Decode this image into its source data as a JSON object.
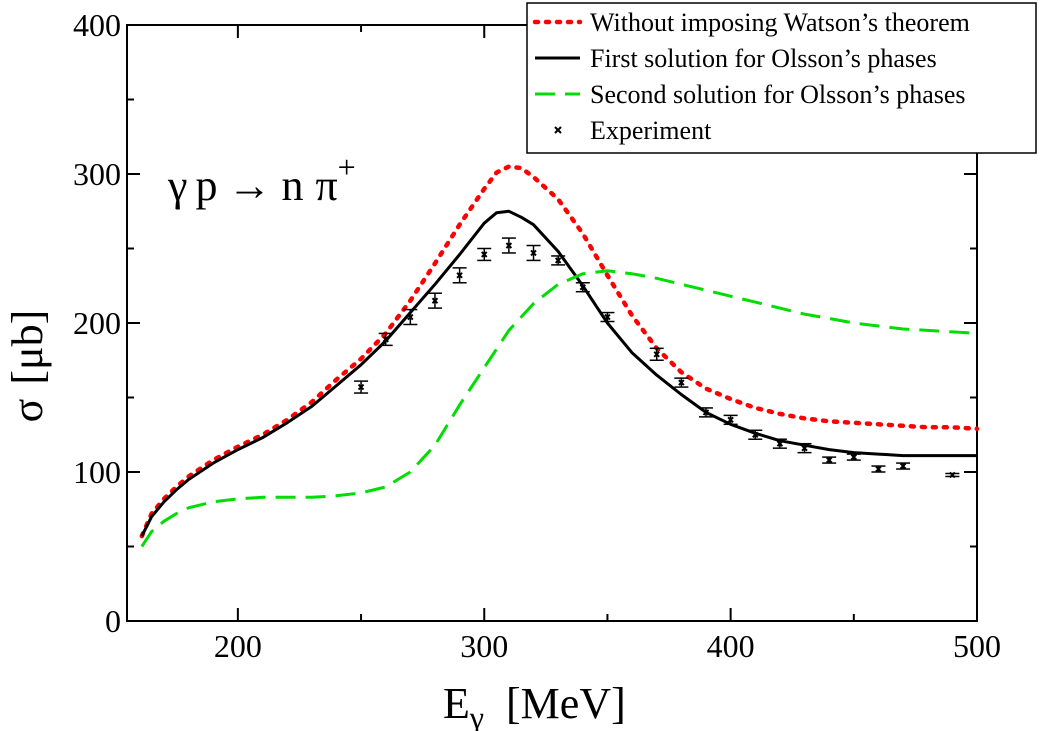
{
  "chart_data": {
    "type": "line",
    "xlabel_main": "E",
    "xlabel_sub": "γ",
    "xlabel_unit": "[MeV]",
    "ylabel_main": "σ",
    "ylabel_unit": "[μb]",
    "annotation": {
      "gamma": "γ",
      "p": "p",
      "arrow": "→",
      "n": "n",
      "pi": "π",
      "sup": "+"
    },
    "xlim": [
      155,
      500
    ],
    "ylim": [
      0,
      400
    ],
    "x_ticks": [
      {
        "value": 200,
        "label": "200"
      },
      {
        "value": 300,
        "label": "300"
      },
      {
        "value": 400,
        "label": "400"
      },
      {
        "value": 500,
        "label": "500"
      }
    ],
    "y_ticks": [
      {
        "value": 0,
        "label": "0"
      },
      {
        "value": 100,
        "label": "100"
      },
      {
        "value": 200,
        "label": "200"
      },
      {
        "value": 300,
        "label": "300"
      },
      {
        "value": 400,
        "label": "400"
      }
    ],
    "legend_position": "top-right",
    "series": [
      {
        "name": "Without imposing Watson’s theorem",
        "style": "dotted",
        "color": "#ff0000",
        "points": [
          [
            161,
            57
          ],
          [
            165,
            72
          ],
          [
            170,
            82
          ],
          [
            175,
            90
          ],
          [
            180,
            97
          ],
          [
            190,
            108
          ],
          [
            200,
            117
          ],
          [
            210,
            125
          ],
          [
            220,
            135
          ],
          [
            230,
            147
          ],
          [
            240,
            162
          ],
          [
            250,
            176
          ],
          [
            260,
            193
          ],
          [
            270,
            215
          ],
          [
            280,
            240
          ],
          [
            290,
            266
          ],
          [
            300,
            290
          ],
          [
            305,
            301
          ],
          [
            310,
            305
          ],
          [
            315,
            304
          ],
          [
            320,
            298
          ],
          [
            330,
            283
          ],
          [
            340,
            260
          ],
          [
            350,
            232
          ],
          [
            360,
            205
          ],
          [
            370,
            183
          ],
          [
            380,
            167
          ],
          [
            390,
            156
          ],
          [
            400,
            149
          ],
          [
            410,
            143
          ],
          [
            420,
            139
          ],
          [
            430,
            136
          ],
          [
            440,
            134
          ],
          [
            450,
            133
          ],
          [
            460,
            132
          ],
          [
            470,
            131
          ],
          [
            480,
            130
          ],
          [
            490,
            130
          ],
          [
            500,
            129
          ]
        ]
      },
      {
        "name": "First solution for Olsson’s phases",
        "style": "solid",
        "color": "#000000",
        "points": [
          [
            161,
            57
          ],
          [
            165,
            70
          ],
          [
            170,
            80
          ],
          [
            175,
            88
          ],
          [
            180,
            95
          ],
          [
            190,
            106
          ],
          [
            200,
            115
          ],
          [
            210,
            123
          ],
          [
            220,
            133
          ],
          [
            230,
            144
          ],
          [
            240,
            158
          ],
          [
            250,
            172
          ],
          [
            260,
            188
          ],
          [
            270,
            207
          ],
          [
            280,
            226
          ],
          [
            290,
            246
          ],
          [
            300,
            267
          ],
          [
            305,
            274
          ],
          [
            310,
            275
          ],
          [
            315,
            271
          ],
          [
            320,
            266
          ],
          [
            330,
            248
          ],
          [
            340,
            225
          ],
          [
            350,
            200
          ],
          [
            360,
            180
          ],
          [
            370,
            165
          ],
          [
            380,
            152
          ],
          [
            390,
            140
          ],
          [
            400,
            132
          ],
          [
            410,
            126
          ],
          [
            420,
            121
          ],
          [
            430,
            118
          ],
          [
            440,
            115
          ],
          [
            450,
            113
          ],
          [
            460,
            112
          ],
          [
            470,
            111
          ],
          [
            480,
            111
          ],
          [
            490,
            111
          ],
          [
            500,
            111
          ]
        ]
      },
      {
        "name": "Second solution for Olsson’s phases",
        "style": "dashed",
        "color": "#00dd00",
        "points": [
          [
            161,
            50
          ],
          [
            165,
            60
          ],
          [
            170,
            67
          ],
          [
            175,
            72
          ],
          [
            180,
            76
          ],
          [
            190,
            80
          ],
          [
            200,
            82
          ],
          [
            210,
            83
          ],
          [
            220,
            83
          ],
          [
            230,
            83
          ],
          [
            240,
            84
          ],
          [
            250,
            86
          ],
          [
            260,
            90
          ],
          [
            270,
            100
          ],
          [
            280,
            118
          ],
          [
            290,
            145
          ],
          [
            300,
            170
          ],
          [
            310,
            195
          ],
          [
            320,
            213
          ],
          [
            330,
            226
          ],
          [
            340,
            233
          ],
          [
            350,
            235
          ],
          [
            360,
            233
          ],
          [
            370,
            230
          ],
          [
            380,
            226
          ],
          [
            390,
            222
          ],
          [
            400,
            218
          ],
          [
            410,
            214
          ],
          [
            420,
            210
          ],
          [
            430,
            206
          ],
          [
            440,
            203
          ],
          [
            450,
            200
          ],
          [
            460,
            198
          ],
          [
            470,
            196
          ],
          [
            480,
            195
          ],
          [
            490,
            194
          ],
          [
            500,
            193
          ]
        ]
      }
    ],
    "experiment": {
      "name": "Experiment",
      "color": "#000000",
      "points": [
        [
          250,
          157,
          4
        ],
        [
          260,
          189,
          4
        ],
        [
          270,
          204,
          5
        ],
        [
          280,
          215,
          5
        ],
        [
          290,
          232,
          5
        ],
        [
          300,
          246,
          4
        ],
        [
          310,
          252,
          5
        ],
        [
          320,
          247,
          5
        ],
        [
          330,
          242,
          3
        ],
        [
          340,
          224,
          3
        ],
        [
          350,
          204,
          3
        ],
        [
          370,
          179,
          4
        ],
        [
          380,
          160,
          3
        ],
        [
          390,
          140,
          3
        ],
        [
          400,
          135,
          3
        ],
        [
          410,
          125,
          3
        ],
        [
          420,
          119,
          3
        ],
        [
          430,
          116,
          3
        ],
        [
          440,
          108,
          2
        ],
        [
          450,
          110,
          2
        ],
        [
          460,
          102,
          2
        ],
        [
          470,
          104,
          2
        ],
        [
          490,
          98,
          1
        ]
      ]
    }
  }
}
